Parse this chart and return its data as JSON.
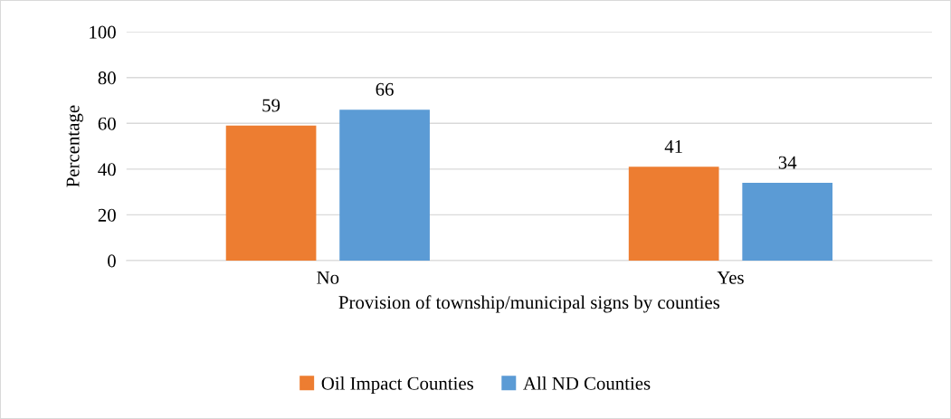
{
  "chart_data": {
    "type": "bar",
    "xlabel": "Provision of township/municipal signs by counties",
    "ylabel": "Percentage",
    "categories": [
      "No",
      "Yes"
    ],
    "series": [
      {
        "name": "Oil Impact Counties",
        "color": "#ed7d31",
        "values": [
          59,
          41
        ]
      },
      {
        "name": "All ND Counties",
        "color": "#5b9bd5",
        "values": [
          66,
          34
        ]
      }
    ],
    "ylim": [
      0,
      100
    ],
    "yticks": [
      0,
      20,
      40,
      60,
      80,
      100
    ],
    "grid": "y",
    "legend": "bottom",
    "data_labels": true
  }
}
